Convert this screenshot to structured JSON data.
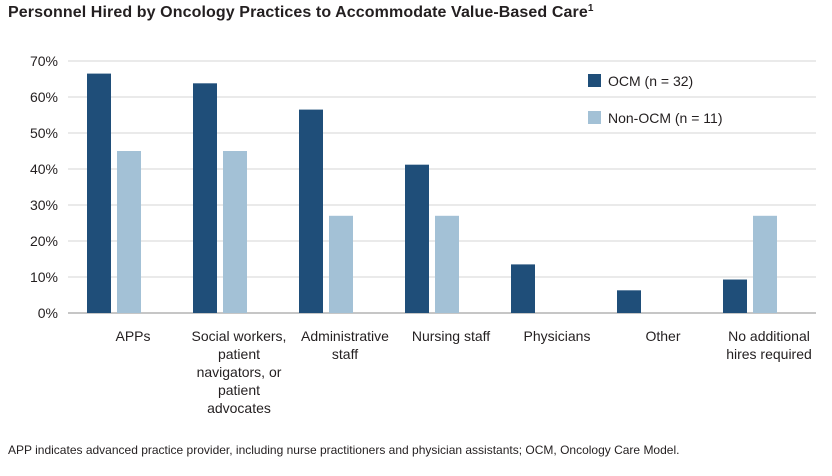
{
  "chart_data": {
    "type": "bar",
    "title": "Personnel Hired by Oncology Practices to Accommodate Value-Based Care",
    "title_superscript": "1",
    "xlabel": "",
    "ylabel": "",
    "ylim": [
      0,
      70
    ],
    "yticks": [
      0,
      10,
      20,
      30,
      40,
      50,
      60,
      70
    ],
    "ytick_labels": [
      "0%",
      "10%",
      "20%",
      "30%",
      "40%",
      "50%",
      "60%",
      "70%"
    ],
    "grid": true,
    "legend_position": "top-right",
    "categories": [
      [
        "APPs"
      ],
      [
        "Social workers,",
        "patient",
        "navigators, or",
        "patient",
        "advocates"
      ],
      [
        "Administrative",
        "staff"
      ],
      [
        "Nursing staff"
      ],
      [
        "Physicians"
      ],
      [
        "Other"
      ],
      [
        "No additional",
        "hires required"
      ]
    ],
    "series": [
      {
        "name": "OCM (n = 32)",
        "color": "#1f4e79",
        "values": [
          66.5,
          63.8,
          56.5,
          41.2,
          13.5,
          6.3,
          9.3
        ]
      },
      {
        "name": "Non-OCM (n = 11)",
        "color": "#a3c1d6",
        "values": [
          45,
          45,
          27,
          27,
          0,
          0,
          27
        ]
      }
    ]
  },
  "footnote": "APP indicates advanced practice provider, including nurse practitioners and physician assistants; OCM, Oncology Care Model."
}
